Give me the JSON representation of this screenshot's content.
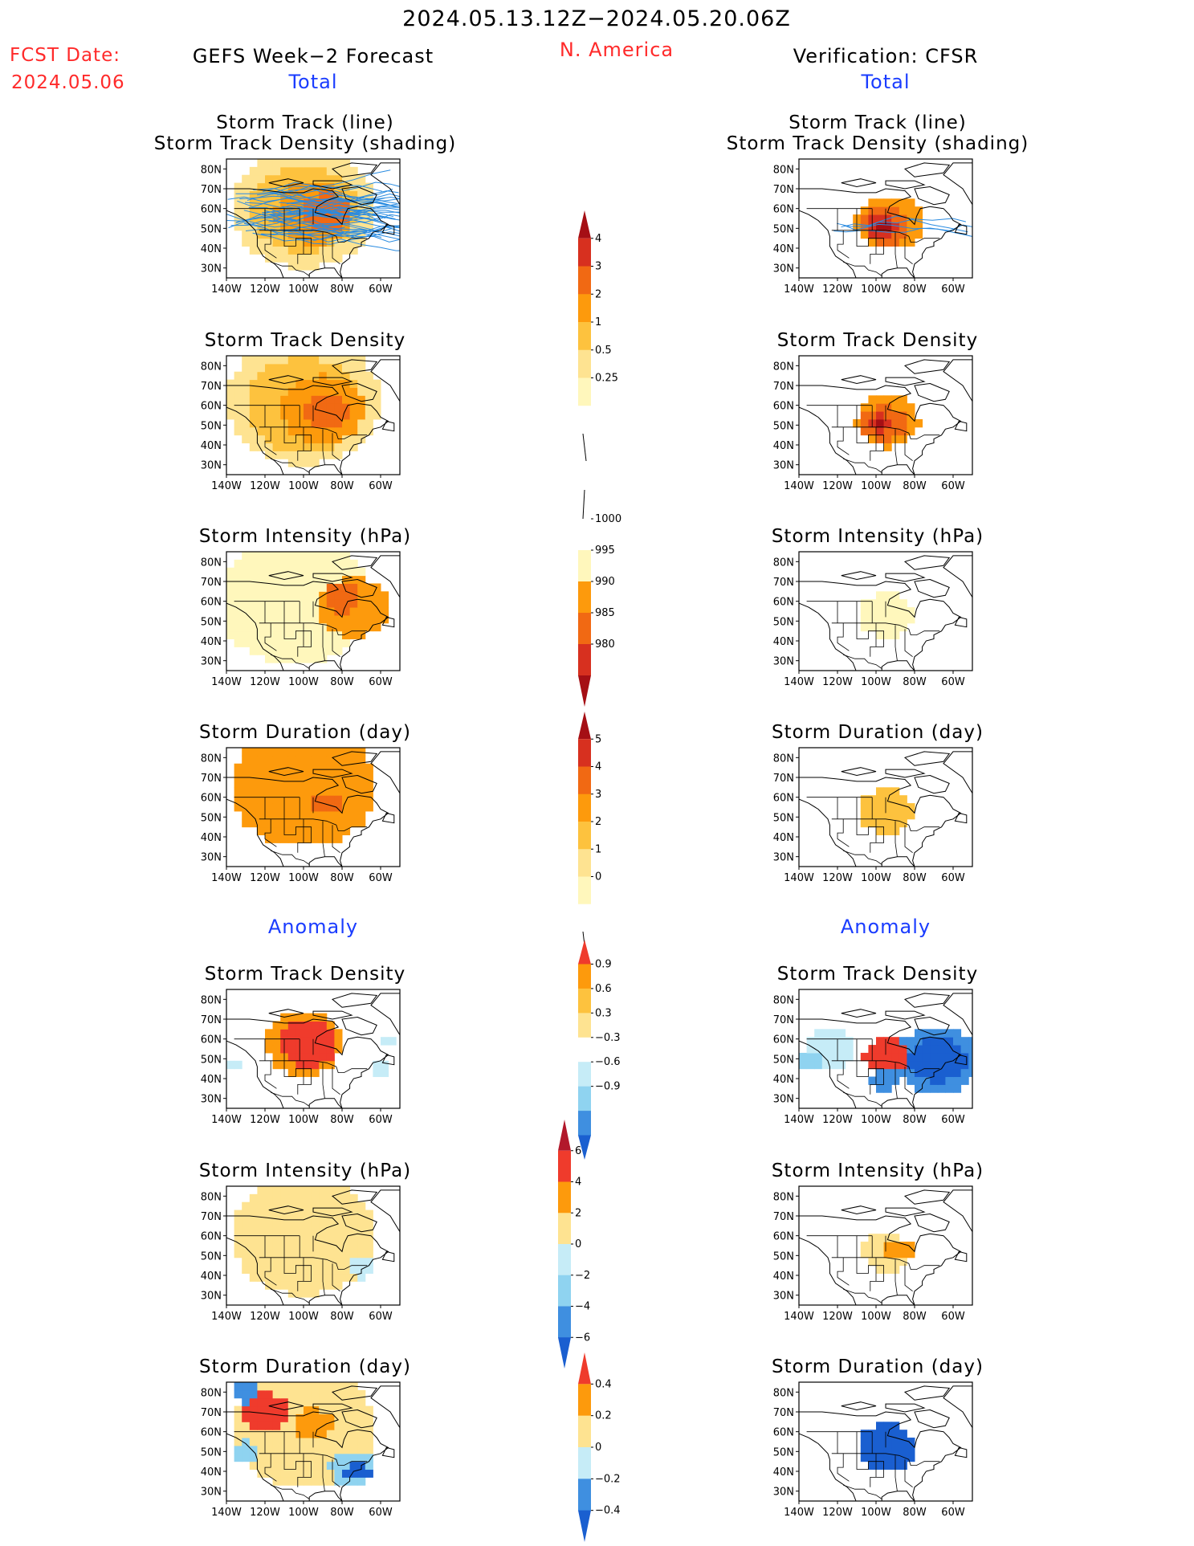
{
  "header": {
    "period": "2024.05.13.12Z−2024.05.20.06Z",
    "fcst_label": "FCST Date:",
    "fcst_date": "2024.05.06",
    "left_title": "GEFS Week−2 Forecast",
    "region": "N. America",
    "right_title": "Verification: CFSR",
    "total_left": "Total",
    "total_right": "Total",
    "anomaly_left": "Anomaly",
    "anomaly_right": "Anomaly"
  },
  "colors": {
    "red_text": "#ff2a2a",
    "blue_text": "#1a3cff",
    "map_line": "#000000",
    "track_line": "#2a8be0"
  },
  "chart_data": {
    "type": "heatmap",
    "map_axes": {
      "lat_ticks": [
        "80N",
        "70N",
        "60N",
        "50N",
        "40N",
        "30N"
      ],
      "lon_ticks": [
        "140W",
        "120W",
        "100W",
        "80W",
        "60W"
      ],
      "lat_range": [
        25,
        85
      ],
      "lon_range": [
        -140,
        -50
      ]
    },
    "panels": [
      {
        "id": "fc-total-track",
        "title_lines": [
          "Storm Track (line)",
          "Storm Track Density (shading)"
        ],
        "side": "left",
        "section": "Total",
        "variable": "storm track + density"
      },
      {
        "id": "vf-total-track",
        "title_lines": [
          "Storm Track (line)",
          "Storm Track Density (shading)"
        ],
        "side": "right",
        "section": "Total",
        "variable": "storm track + density"
      },
      {
        "id": "fc-total-density",
        "title_lines": [
          "Storm Track Density"
        ],
        "side": "left",
        "section": "Total",
        "variable": "density"
      },
      {
        "id": "vf-total-density",
        "title_lines": [
          "Storm Track Density"
        ],
        "side": "right",
        "section": "Total",
        "variable": "density"
      },
      {
        "id": "fc-total-intensity",
        "title_lines": [
          "Storm Intensity (hPa)"
        ],
        "side": "left",
        "section": "Total",
        "variable": "intensity"
      },
      {
        "id": "vf-total-intensity",
        "title_lines": [
          "Storm Intensity (hPa)"
        ],
        "side": "right",
        "section": "Total",
        "variable": "intensity"
      },
      {
        "id": "fc-total-duration",
        "title_lines": [
          "Storm Duration (day)"
        ],
        "side": "left",
        "section": "Total",
        "variable": "duration"
      },
      {
        "id": "vf-total-duration",
        "title_lines": [
          "Storm Duration (day)"
        ],
        "side": "right",
        "section": "Total",
        "variable": "duration"
      },
      {
        "id": "fc-anom-density",
        "title_lines": [
          "Storm Track Density"
        ],
        "side": "left",
        "section": "Anomaly",
        "variable": "density anomaly"
      },
      {
        "id": "vf-anom-density",
        "title_lines": [
          "Storm Track Density"
        ],
        "side": "right",
        "section": "Anomaly",
        "variable": "density anomaly"
      },
      {
        "id": "fc-anom-intensity",
        "title_lines": [
          "Storm Intensity (hPa)"
        ],
        "side": "left",
        "section": "Anomaly",
        "variable": "intensity anomaly"
      },
      {
        "id": "vf-anom-intensity",
        "title_lines": [
          "Storm Intensity (hPa)"
        ],
        "side": "right",
        "section": "Anomaly",
        "variable": "intensity anomaly"
      },
      {
        "id": "fc-anom-duration",
        "title_lines": [
          "Storm Duration (day)"
        ],
        "side": "left",
        "section": "Anomaly",
        "variable": "duration anomaly"
      },
      {
        "id": "vf-anom-duration",
        "title_lines": [
          "Storm Duration (day)"
        ],
        "side": "right",
        "section": "Anomaly",
        "variable": "duration anomaly"
      }
    ],
    "colorbars": [
      {
        "id": "cb-density",
        "labels": [
          "4",
          "3",
          "2",
          "1",
          "0.5",
          "0.25"
        ],
        "colors": [
          "#a50f15",
          "#d7301f",
          "#f16913",
          "#fd9a0c",
          "#fdc23e",
          "#fee391",
          "#fff7bc",
          "#ffffff"
        ]
      },
      {
        "id": "cb-intensity",
        "labels": [
          "1000",
          "995",
          "990",
          "985",
          "980"
        ],
        "colors": [
          "#ffffff",
          "#fff7bc",
          "#fd9a0c",
          "#f16913",
          "#d7301f",
          "#a50f15"
        ]
      },
      {
        "id": "cb-duration",
        "labels": [
          "5",
          "4",
          "3",
          "2",
          "1",
          "0"
        ],
        "colors": [
          "#a50f15",
          "#d7301f",
          "#f16913",
          "#fd9a0c",
          "#fdc23e",
          "#fee391",
          "#fff7bc",
          "#ffffff"
        ]
      },
      {
        "id": "cb-anom-density",
        "labels": [
          "0.9",
          "0.6",
          "0.3",
          "−0.3",
          "−0.6",
          "−0.9"
        ],
        "colors": [
          "#ef3b2c",
          "#fd9a0c",
          "#fdc23e",
          "#fee391",
          "#ffffff",
          "#c6ecf7",
          "#8fd3f0",
          "#3f8fe0",
          "#1a5fd0"
        ]
      },
      {
        "id": "cb-anom-intensity",
        "labels": [
          "6",
          "4",
          "2",
          "0",
          "−2",
          "−4",
          "−6"
        ],
        "colors": [
          "#b2182b",
          "#ef3b2c",
          "#fd9a0c",
          "#fee391",
          "#c6ecf7",
          "#8fd3f0",
          "#3f8fe0",
          "#1a5fd0"
        ]
      },
      {
        "id": "cb-anom-duration",
        "labels": [
          "0.4",
          "0.2",
          "0",
          "−0.2",
          "−0.4"
        ],
        "colors": [
          "#ef3b2c",
          "#fd9a0c",
          "#fee391",
          "#c6ecf7",
          "#3f8fe0",
          "#1a5fd0"
        ]
      }
    ]
  }
}
